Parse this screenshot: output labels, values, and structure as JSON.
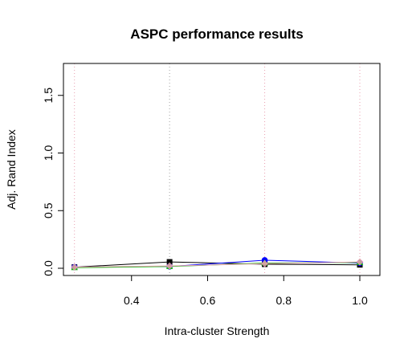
{
  "chart_data": {
    "type": "line",
    "title": "ASPC performance results",
    "xlabel": "Intra-cluster Strength",
    "ylabel": "Adj. Rand Index",
    "x": [
      0.25,
      0.5,
      0.75,
      1.0
    ],
    "xlim": [
      0.25,
      1.0
    ],
    "ylim": [
      0,
      1.6
    ],
    "xticks": [
      "0.4",
      "0.6",
      "0.8",
      "1.0"
    ],
    "xtick_values": [
      0.4,
      0.6,
      0.8,
      1.0
    ],
    "yticks": [
      "0.0",
      "0.5",
      "1.0",
      "1.5"
    ],
    "ytick_values": [
      0.0,
      0.5,
      1.0,
      1.5
    ],
    "vertical_guides": [
      0.25,
      0.5,
      0.75,
      1.0
    ],
    "series": [
      {
        "values": [
          0.01,
          0.055,
          0.035,
          0.03
        ],
        "color": "#000000",
        "marker": "square"
      },
      {
        "values": [
          0.01,
          0.015,
          0.07,
          0.045
        ],
        "color": "#0000ff",
        "marker": "circle"
      },
      {
        "values": [
          0.005,
          0.015,
          0.045,
          0.05
        ],
        "color": "#00bb00",
        "marker": "triangle"
      },
      {
        "values": [
          0.01,
          0.02,
          0.04,
          0.055
        ],
        "color": "#e8a0b0",
        "marker": "diamond"
      }
    ],
    "grid": false,
    "legend": "none"
  }
}
